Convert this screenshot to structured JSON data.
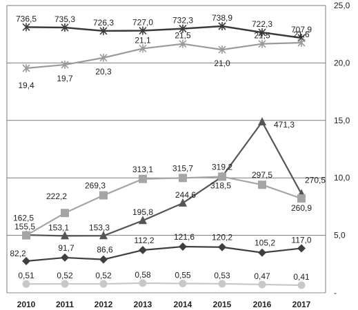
{
  "chart_data": {
    "type": "line",
    "categories": [
      "2010",
      "2011",
      "2012",
      "2013",
      "2014",
      "2015",
      "2016",
      "2017"
    ],
    "right_axis": {
      "ticks": [
        "25,0",
        "20,0",
        "15,0",
        "10,0",
        "5,0",
        "-"
      ],
      "ylim": [
        0,
        25
      ]
    },
    "grid": true,
    "series": [
      {
        "marker": "x",
        "color": "#3a3a3a",
        "values": [
          736.5,
          735.3,
          726.3,
          727.0,
          732.3,
          738.9,
          722.3,
          707.9
        ],
        "labels": [
          "736,5",
          "735,3",
          "726,3",
          "727,0",
          "732,3",
          "738,9",
          "722,3",
          "707,9"
        ]
      },
      {
        "marker": "x",
        "color": "#9a9a9a",
        "values": [
          19.4,
          19.7,
          20.3,
          21.1,
          21.5,
          21.0,
          21.5,
          21.6
        ],
        "labels": [
          "19,4",
          "19,7",
          "20,3",
          "21,1",
          "21,5",
          "21,0",
          "21,5",
          "21,6"
        ]
      },
      {
        "marker": "triangle",
        "color": "#555555",
        "values": [
          155.5,
          153.1,
          153.3,
          195.8,
          244.6,
          318.5,
          471.3,
          270.5
        ],
        "labels": [
          "155,5",
          "153,1",
          "153,3",
          "195,8",
          "244,6",
          "318,5",
          "471,3",
          "270,5"
        ]
      },
      {
        "marker": "square",
        "color": "#a5a5a5",
        "values": [
          162.5,
          222.2,
          269.3,
          313.1,
          315.7,
          319.2,
          297.5,
          260.9
        ],
        "labels": [
          "162,5",
          "222,2",
          "269,3",
          "313,1",
          "315,7",
          "319,2",
          "297,5",
          "260,9"
        ]
      },
      {
        "marker": "diamond",
        "color": "#3f3f3f",
        "values": [
          82.2,
          91.7,
          86.6,
          112.2,
          121.6,
          120.2,
          105.2,
          117.0
        ],
        "labels": [
          "82,2",
          "91,7",
          "86,6",
          "112,2",
          "121,6",
          "120,2",
          "105,2",
          "117,0"
        ]
      },
      {
        "marker": "circle",
        "color": "#c8c8c8",
        "values": [
          0.51,
          0.52,
          0.52,
          0.58,
          0.55,
          0.53,
          0.47,
          0.41
        ],
        "labels": [
          "0,51",
          "0,52",
          "0,52",
          "0,58",
          "0,55",
          "0,53",
          "0,47",
          "0,41"
        ]
      }
    ]
  }
}
